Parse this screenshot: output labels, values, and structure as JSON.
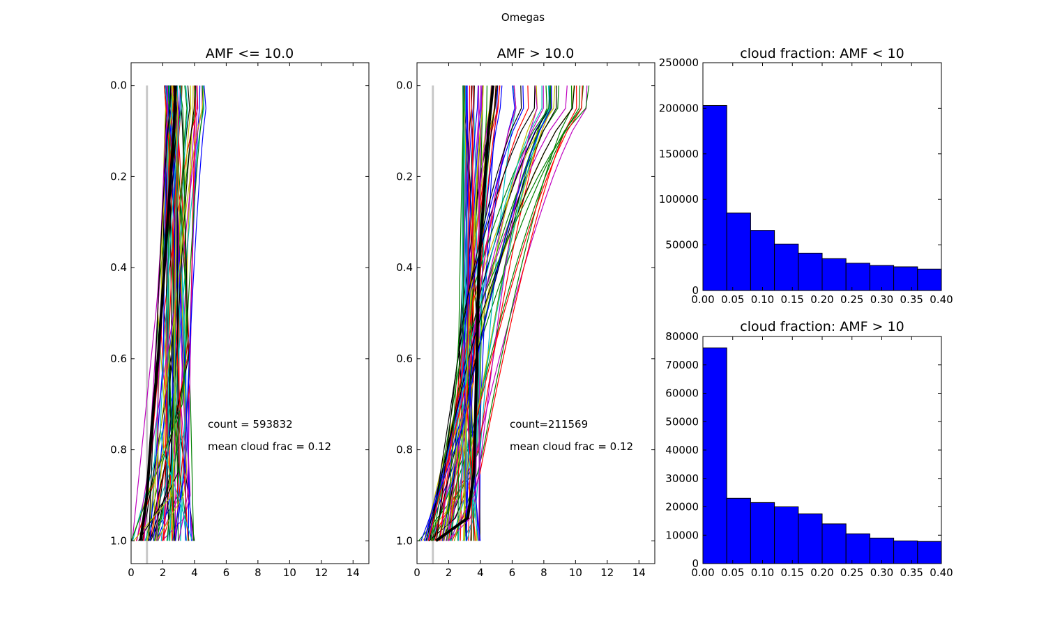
{
  "figure": {
    "suptitle": "Omegas"
  },
  "chart_data": [
    {
      "type": "line",
      "title": "AMF <= 10.0",
      "xlim": [
        0,
        15
      ],
      "ylim": [
        1.05,
        -0.05
      ],
      "y_inverted": true,
      "xticks": [
        "0",
        "2",
        "4",
        "6",
        "8",
        "10",
        "12",
        "14"
      ],
      "yticks": [
        "0.0",
        "0.2",
        "0.4",
        "0.6",
        "0.8",
        "1.0"
      ],
      "annotations": [
        "count = 593832",
        "mean cloud frac =   0.12"
      ],
      "mean_profile": {
        "name": "mean",
        "x": [
          2.8,
          2.7,
          2.5,
          2.3,
          2.0,
          1.7,
          1.3,
          1.0,
          0.6
        ],
        "y": [
          0.0,
          0.1,
          0.2,
          0.3,
          0.45,
          0.6,
          0.75,
          0.9,
          1.0
        ]
      },
      "reference_line": {
        "x": 1.0,
        "y": [
          0.0,
          1.05
        ]
      },
      "profile_count_drawn": 70,
      "profile_x_range_top": [
        2.1,
        4.8
      ],
      "profile_x_range_bottom": [
        0.0,
        4.0
      ],
      "colors": [
        "#0000ff",
        "#008000",
        "#ff0000",
        "#00bfbf",
        "#bf00bf",
        "#bfbf00",
        "#000000"
      ]
    },
    {
      "type": "line",
      "title": "AMF > 10.0",
      "xlim": [
        0,
        15
      ],
      "ylim": [
        1.05,
        -0.05
      ],
      "y_inverted": true,
      "xticks": [
        "0",
        "2",
        "4",
        "6",
        "8",
        "10",
        "12",
        "14"
      ],
      "yticks": [
        "0.0",
        "0.2",
        "0.4",
        "0.6",
        "0.8",
        "1.0"
      ],
      "annotations": [
        "count=211569",
        "mean cloud frac =   0.12"
      ],
      "mean_profile": {
        "name": "mean",
        "x": [
          4.8,
          4.5,
          4.2,
          3.9,
          3.8,
          3.7,
          3.6,
          3.2,
          1.2
        ],
        "y": [
          0.0,
          0.1,
          0.25,
          0.4,
          0.55,
          0.7,
          0.85,
          0.95,
          1.0
        ]
      },
      "reference_line": {
        "x": 1.0,
        "y": [
          0.0,
          1.05
        ]
      },
      "profile_count_drawn": 80,
      "profile_x_range_top": [
        2.9,
        11.0
      ],
      "profile_x_range_bottom": [
        0.0,
        4.0
      ],
      "colors": [
        "#0000ff",
        "#008000",
        "#ff0000",
        "#00bfbf",
        "#bf00bf",
        "#bfbf00",
        "#000000"
      ]
    },
    {
      "type": "bar",
      "title": "cloud fraction: AMF < 10",
      "bin_edges": [
        0.0,
        0.04,
        0.08,
        0.12,
        0.16,
        0.2,
        0.24,
        0.28,
        0.32,
        0.36,
        0.4
      ],
      "values": [
        203000,
        85000,
        66000,
        51000,
        41000,
        35000,
        30000,
        27500,
        26000,
        23500
      ],
      "xlim": [
        0.0,
        0.4
      ],
      "ylim": [
        0,
        250000
      ],
      "xticks": [
        "0.00",
        "0.05",
        "0.10",
        "0.15",
        "0.20",
        "0.25",
        "0.30",
        "0.35",
        "0.40"
      ],
      "yticks": [
        "0",
        "50000",
        "100000",
        "150000",
        "200000",
        "250000"
      ],
      "color": "#0000ff"
    },
    {
      "type": "bar",
      "title": "cloud fraction: AMF > 10",
      "bin_edges": [
        0.0,
        0.04,
        0.08,
        0.12,
        0.16,
        0.2,
        0.24,
        0.28,
        0.32,
        0.36,
        0.4
      ],
      "values": [
        76000,
        23000,
        21500,
        20000,
        17500,
        14000,
        10500,
        9000,
        8000,
        7800
      ],
      "xlim": [
        0.0,
        0.4
      ],
      "ylim": [
        0,
        80000
      ],
      "xticks": [
        "0.00",
        "0.05",
        "0.10",
        "0.15",
        "0.20",
        "0.25",
        "0.30",
        "0.35",
        "0.40"
      ],
      "yticks": [
        "0",
        "10000",
        "20000",
        "30000",
        "40000",
        "50000",
        "60000",
        "70000",
        "80000"
      ],
      "color": "#0000ff"
    }
  ]
}
